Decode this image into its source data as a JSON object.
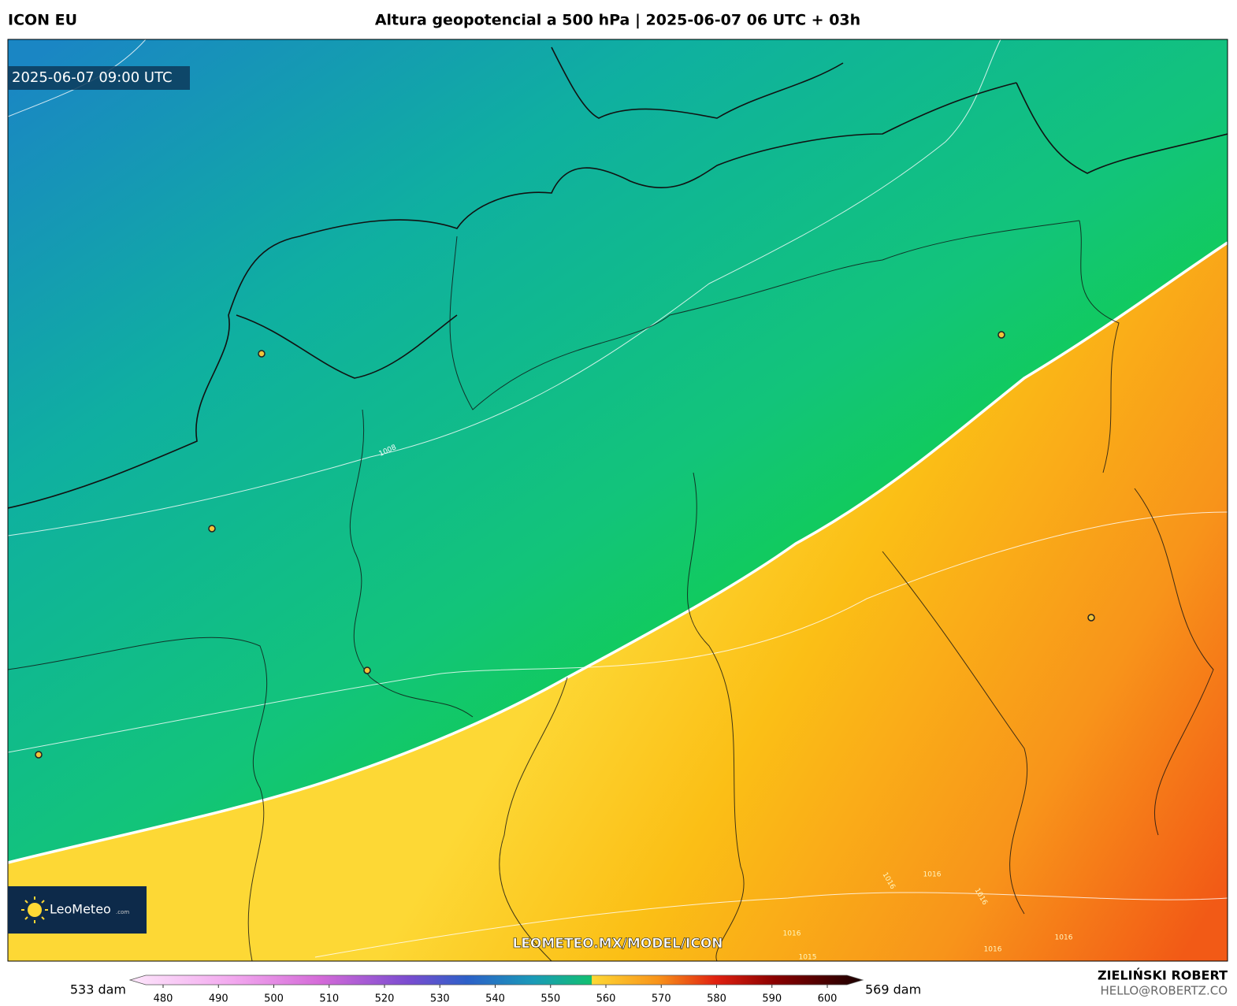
{
  "header": {
    "model": "ICON EU",
    "title": "Altura geopotencial a 500 hPa | 2025-06-07 06 UTC + 03h"
  },
  "map": {
    "valid_time": "2025-06-07 09:00 UTC",
    "watermark": "LEOMETEO.MX/MODEL/ICON",
    "logo": {
      "name": "LeoMeteo",
      "suffix": ".com"
    },
    "isobar_labels": [
      "1008",
      "1016",
      "1016",
      "1016",
      "1016",
      "1016",
      "1015",
      "1016"
    ]
  },
  "colorbar": {
    "min_label": "533 dam",
    "max_label": "569 dam",
    "ticks": [
      480,
      490,
      500,
      510,
      520,
      530,
      540,
      550,
      560,
      570,
      580,
      590,
      600
    ]
  },
  "credits": {
    "author": "ZIELIŃSKI ROBERT",
    "email": "HELLO@ROBERTZ.CO"
  }
}
